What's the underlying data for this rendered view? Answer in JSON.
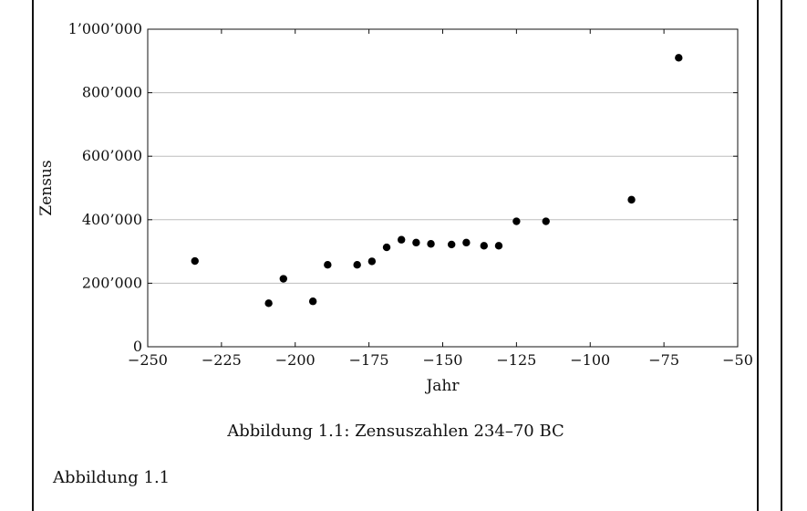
{
  "caption": "Abbildung 1.1: Zensuszahlen 234–70 BC",
  "figure_reference": "Abbildung 1.1",
  "chart_data": {
    "type": "scatter",
    "xlabel": "Jahr",
    "ylabel": "Zensus",
    "xlim": [
      -250,
      -50
    ],
    "ylim": [
      0,
      1000000
    ],
    "x_ticks": [
      -250,
      -225,
      -200,
      -175,
      -150,
      -125,
      -100,
      -75,
      -50
    ],
    "x_tick_labels": [
      "−250",
      "−225",
      "−200",
      "−175",
      "−150",
      "−125",
      "−100",
      "−75",
      "−50"
    ],
    "y_ticks": [
      0,
      200000,
      400000,
      600000,
      800000,
      1000000
    ],
    "y_tick_labels": [
      "0",
      "200’000",
      "400’000",
      "600’000",
      "800’000",
      "1’000’000"
    ],
    "grid": "horizontal",
    "marker_color": "#000000",
    "points": [
      {
        "x": -234,
        "y": 270000
      },
      {
        "x": -209,
        "y": 137000
      },
      {
        "x": -204,
        "y": 214000
      },
      {
        "x": -194,
        "y": 143000
      },
      {
        "x": -189,
        "y": 258000
      },
      {
        "x": -179,
        "y": 258000
      },
      {
        "x": -174,
        "y": 269000
      },
      {
        "x": -169,
        "y": 313000
      },
      {
        "x": -164,
        "y": 337000
      },
      {
        "x": -159,
        "y": 328000
      },
      {
        "x": -154,
        "y": 324000
      },
      {
        "x": -147,
        "y": 322000
      },
      {
        "x": -142,
        "y": 328000
      },
      {
        "x": -136,
        "y": 318000
      },
      {
        "x": -131,
        "y": 318000
      },
      {
        "x": -125,
        "y": 395000
      },
      {
        "x": -115,
        "y": 395000
      },
      {
        "x": -86,
        "y": 463000
      },
      {
        "x": -70,
        "y": 910000
      }
    ]
  }
}
